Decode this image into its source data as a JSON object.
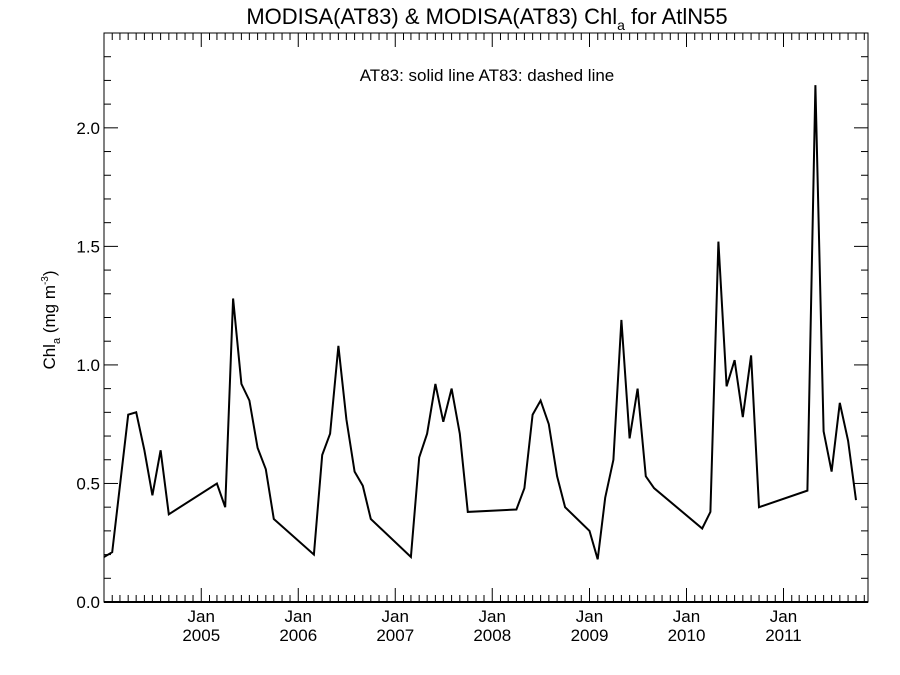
{
  "chart_data": {
    "type": "line",
    "title": {
      "prefix": "MODISA(AT83) & MODISA(AT83)  Chl",
      "subscript": "a",
      "suffix": " for AtlN55"
    },
    "ylabel": {
      "prefix": "Chl",
      "subscript": "a",
      "middle": " (mg m",
      "superscript": "-3",
      "suffix": ")"
    },
    "legend_text": "AT83: solid line   AT83: dashed line",
    "legend_placement": "top-center",
    "x_range": [
      "2004-01-01",
      "2011-11-15"
    ],
    "ylim": [
      0,
      2.4
    ],
    "y_ticks": [
      0.0,
      0.5,
      1.0,
      1.5,
      2.0
    ],
    "y_tick_labels": [
      "0.0",
      "0.5",
      "1.0",
      "1.5",
      "2.0"
    ],
    "x_ticks": [
      {
        "date": "2005-01-01",
        "label_month": "Jan",
        "label_year": "2005"
      },
      {
        "date": "2006-01-01",
        "label_month": "Jan",
        "label_year": "2006"
      },
      {
        "date": "2007-01-01",
        "label_month": "Jan",
        "label_year": "2007"
      },
      {
        "date": "2008-01-01",
        "label_month": "Jan",
        "label_year": "2008"
      },
      {
        "date": "2009-01-01",
        "label_month": "Jan",
        "label_year": "2009"
      },
      {
        "date": "2010-01-01",
        "label_month": "Jan",
        "label_year": "2010"
      },
      {
        "date": "2011-01-01",
        "label_month": "Jan",
        "label_year": "2011"
      }
    ],
    "grid": false,
    "series": [
      {
        "style": "solid",
        "color": "#000000",
        "points": [
          [
            "2004-01-01",
            0.19
          ],
          [
            "2004-02-01",
            0.21
          ],
          [
            "2004-04-01",
            0.79
          ],
          [
            "2004-05-01",
            0.8
          ],
          [
            "2004-06-01",
            0.64
          ],
          [
            "2004-07-01",
            0.45
          ],
          [
            "2004-08-01",
            0.64
          ],
          [
            "2004-09-01",
            0.37
          ],
          [
            "2005-03-01",
            0.5
          ],
          [
            "2005-04-01",
            0.4
          ],
          [
            "2005-05-01",
            1.28
          ],
          [
            "2005-06-01",
            0.92
          ],
          [
            "2005-07-01",
            0.85
          ],
          [
            "2005-08-01",
            0.65
          ],
          [
            "2005-09-01",
            0.56
          ],
          [
            "2005-10-01",
            0.35
          ],
          [
            "2006-03-01",
            0.2
          ],
          [
            "2006-04-01",
            0.62
          ],
          [
            "2006-05-01",
            0.71
          ],
          [
            "2006-06-01",
            1.08
          ],
          [
            "2006-07-01",
            0.77
          ],
          [
            "2006-08-01",
            0.55
          ],
          [
            "2006-09-01",
            0.49
          ],
          [
            "2006-10-01",
            0.35
          ],
          [
            "2007-03-01",
            0.19
          ],
          [
            "2007-04-01",
            0.61
          ],
          [
            "2007-05-01",
            0.71
          ],
          [
            "2007-06-01",
            0.92
          ],
          [
            "2007-07-01",
            0.76
          ],
          [
            "2007-08-01",
            0.9
          ],
          [
            "2007-09-01",
            0.71
          ],
          [
            "2007-10-01",
            0.38
          ],
          [
            "2008-04-01",
            0.39
          ],
          [
            "2008-05-01",
            0.48
          ],
          [
            "2008-06-01",
            0.79
          ],
          [
            "2008-07-01",
            0.85
          ],
          [
            "2008-08-01",
            0.75
          ],
          [
            "2008-09-01",
            0.53
          ],
          [
            "2008-10-01",
            0.4
          ],
          [
            "2009-01-01",
            0.3
          ],
          [
            "2009-02-01",
            0.18
          ],
          [
            "2009-03-01",
            0.44
          ],
          [
            "2009-04-01",
            0.6
          ],
          [
            "2009-05-01",
            1.19
          ],
          [
            "2009-06-01",
            0.69
          ],
          [
            "2009-07-01",
            0.9
          ],
          [
            "2009-08-01",
            0.53
          ],
          [
            "2009-09-01",
            0.48
          ],
          [
            "2010-03-01",
            0.31
          ],
          [
            "2010-04-01",
            0.38
          ],
          [
            "2010-05-01",
            1.52
          ],
          [
            "2010-06-01",
            0.91
          ],
          [
            "2010-07-01",
            1.02
          ],
          [
            "2010-08-01",
            0.78
          ],
          [
            "2010-09-01",
            1.04
          ],
          [
            "2010-10-01",
            0.4
          ],
          [
            "2011-04-01",
            0.47
          ],
          [
            "2011-05-01",
            2.18
          ],
          [
            "2011-06-01",
            0.72
          ],
          [
            "2011-07-01",
            0.55
          ],
          [
            "2011-08-01",
            0.84
          ],
          [
            "2011-09-01",
            0.68
          ],
          [
            "2011-10-01",
            0.43
          ]
        ]
      }
    ]
  }
}
